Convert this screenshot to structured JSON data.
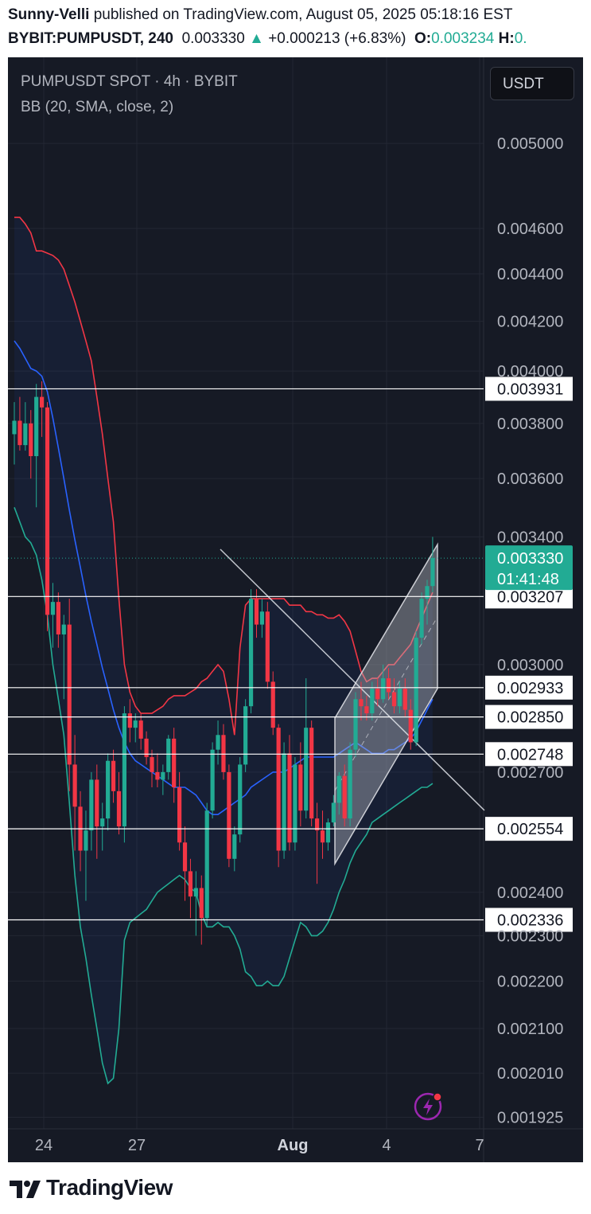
{
  "header": {
    "line1_author": "Sunny-Velli",
    "line1_rest": "published on TradingView.com, August 05, 2025 05:18:16 EST",
    "symbol": "BYBIT:PUMPUSDT, 240",
    "price": "0.003330",
    "change": "+0.000213 (+6.83%)",
    "o_label": "O:",
    "o_value": "0.003234",
    "h_label": "H:",
    "h_value": "0."
  },
  "overlay": {
    "title": "PUMPUSDT SPOT · 4h · BYBIT",
    "indicator": "BB (20, SMA, close, 2)",
    "currency_button": "USDT"
  },
  "colors": {
    "bg": "#161a25",
    "up": "#22ab94",
    "down": "#f23645",
    "bb_upper": "#f23645",
    "bb_basis": "#2962ff",
    "bb_lower": "#22ab94",
    "level_line": "#ffffff"
  },
  "footer": {
    "brand": "TradingView",
    "logo_icon": "tradingview-logo-icon"
  },
  "action_icon": "lightning-alert-icon",
  "chart_data": {
    "type": "candlestick",
    "price_axis_ticks": [
      "0.005000",
      "0.004600",
      "0.004400",
      "0.004200",
      "0.004000",
      "0.003800",
      "0.003600",
      "0.003400",
      "0.003000",
      "0.002700",
      "0.002400",
      "0.002300",
      "0.002200",
      "0.002100",
      "0.002010",
      "0.001925"
    ],
    "price_labels": [
      "0.003931",
      "0.003207",
      "0.002933",
      "0.002850",
      "0.002748",
      "0.002554",
      "0.002336"
    ],
    "horizontal_levels": [
      0.003931,
      0.003207,
      0.002933,
      0.00285,
      0.002748,
      0.002554,
      0.002336
    ],
    "current_price": "0.003330",
    "countdown": "01:41:48",
    "x_ticks": [
      "24",
      "27",
      "Aug",
      "4",
      "7"
    ],
    "ylim": [
      0.00188,
      0.0053
    ],
    "scale": "log",
    "candles": [
      [
        0.00376,
        0.00388,
        0.00365,
        0.00381
      ],
      [
        0.00381,
        0.0039,
        0.0037,
        0.00372
      ],
      [
        0.00372,
        0.00388,
        0.0037,
        0.0038
      ],
      [
        0.0038,
        0.00385,
        0.0036,
        0.00368
      ],
      [
        0.00368,
        0.00395,
        0.0035,
        0.0039
      ],
      [
        0.0039,
        0.00396,
        0.00375,
        0.00386
      ],
      [
        0.00386,
        0.00388,
        0.0031,
        0.00315
      ],
      [
        0.00315,
        0.00325,
        0.00305,
        0.00319
      ],
      [
        0.00319,
        0.00322,
        0.00305,
        0.00309
      ],
      [
        0.00309,
        0.00315,
        0.0029,
        0.00312
      ],
      [
        0.00312,
        0.0032,
        0.00265,
        0.00272
      ],
      [
        0.00272,
        0.0028,
        0.0025,
        0.00261
      ],
      [
        0.00261,
        0.00265,
        0.00245,
        0.0025
      ],
      [
        0.0025,
        0.0026,
        0.00238,
        0.00255
      ],
      [
        0.00255,
        0.0027,
        0.0025,
        0.00268
      ],
      [
        0.00268,
        0.00272,
        0.00248,
        0.00256
      ],
      [
        0.00256,
        0.00262,
        0.0025,
        0.00258
      ],
      [
        0.00258,
        0.00275,
        0.00255,
        0.00273
      ],
      [
        0.00273,
        0.00276,
        0.00262,
        0.00265
      ],
      [
        0.00265,
        0.0027,
        0.00254,
        0.00256
      ],
      [
        0.00256,
        0.00288,
        0.00252,
        0.00286
      ],
      [
        0.00286,
        0.0029,
        0.00278,
        0.00282
      ],
      [
        0.00282,
        0.00286,
        0.00278,
        0.00284
      ],
      [
        0.00284,
        0.00286,
        0.00276,
        0.00279
      ],
      [
        0.00279,
        0.00281,
        0.00272,
        0.00274
      ],
      [
        0.00274,
        0.00276,
        0.00266,
        0.0027
      ],
      [
        0.0027,
        0.00275,
        0.00266,
        0.00268
      ],
      [
        0.00268,
        0.00272,
        0.00264,
        0.0027
      ],
      [
        0.0027,
        0.0028,
        0.00268,
        0.00279
      ],
      [
        0.00279,
        0.00282,
        0.00262,
        0.00266
      ],
      [
        0.00266,
        0.0027,
        0.0025,
        0.00252
      ],
      [
        0.00252,
        0.00256,
        0.00238,
        0.00245
      ],
      [
        0.00245,
        0.00248,
        0.00234,
        0.00239
      ],
      [
        0.00239,
        0.00245,
        0.0023,
        0.00241
      ],
      [
        0.00241,
        0.00244,
        0.00228,
        0.00234
      ],
      [
        0.00234,
        0.00262,
        0.00232,
        0.0026
      ],
      [
        0.0026,
        0.00278,
        0.00258,
        0.00276
      ],
      [
        0.00276,
        0.00284,
        0.00272,
        0.0028
      ],
      [
        0.0028,
        0.00283,
        0.00268,
        0.0027
      ],
      [
        0.0027,
        0.00272,
        0.00246,
        0.00248
      ],
      [
        0.00248,
        0.00256,
        0.00245,
        0.00254
      ],
      [
        0.00254,
        0.00274,
        0.00252,
        0.00272
      ],
      [
        0.00272,
        0.0029,
        0.0027,
        0.00288
      ],
      [
        0.00288,
        0.00323,
        0.00286,
        0.0032
      ],
      [
        0.0032,
        0.00323,
        0.00308,
        0.00312
      ],
      [
        0.00312,
        0.0032,
        0.00308,
        0.00316
      ],
      [
        0.00316,
        0.00319,
        0.00293,
        0.00295
      ],
      [
        0.00295,
        0.00298,
        0.0028,
        0.00282
      ],
      [
        0.00282,
        0.00283,
        0.00246,
        0.0025
      ],
      [
        0.0025,
        0.00278,
        0.00248,
        0.00275
      ],
      [
        0.00275,
        0.0028,
        0.0025,
        0.00252
      ],
      [
        0.00252,
        0.00274,
        0.0025,
        0.00272
      ],
      [
        0.00272,
        0.00278,
        0.00256,
        0.0026
      ],
      [
        0.0026,
        0.00296,
        0.00258,
        0.00282
      ],
      [
        0.00282,
        0.00284,
        0.00256,
        0.00258
      ],
      [
        0.00258,
        0.00262,
        0.00242,
        0.00255
      ],
      [
        0.00255,
        0.0026,
        0.00248,
        0.00252
      ],
      [
        0.00252,
        0.00258,
        0.0025,
        0.00257
      ],
      [
        0.00257,
        0.00264,
        0.00256,
        0.00262
      ],
      [
        0.00262,
        0.0027,
        0.00259,
        0.00269
      ],
      [
        0.00269,
        0.00272,
        0.00256,
        0.00258
      ],
      [
        0.00258,
        0.00278,
        0.00256,
        0.00276
      ],
      [
        0.00276,
        0.00292,
        0.00274,
        0.0029
      ],
      [
        0.0029,
        0.00295,
        0.00284,
        0.00288
      ],
      [
        0.00288,
        0.00291,
        0.00284,
        0.00286
      ],
      [
        0.00286,
        0.00295,
        0.00284,
        0.00293
      ],
      [
        0.00293,
        0.00296,
        0.00288,
        0.0029
      ],
      [
        0.0029,
        0.003,
        0.00289,
        0.00296
      ],
      [
        0.00296,
        0.00299,
        0.0029,
        0.00292
      ],
      [
        0.00292,
        0.00296,
        0.00286,
        0.00288
      ],
      [
        0.00288,
        0.00295,
        0.00286,
        0.00293
      ],
      [
        0.00293,
        0.00296,
        0.00285,
        0.00287
      ],
      [
        0.00287,
        0.0029,
        0.00276,
        0.00278
      ],
      [
        0.00278,
        0.0031,
        0.00277,
        0.00308
      ],
      [
        0.00308,
        0.00322,
        0.00306,
        0.0032
      ],
      [
        0.0032,
        0.00326,
        0.00312,
        0.00324
      ],
      [
        0.00324,
        0.0034,
        0.00322,
        0.00333
      ]
    ],
    "bb_upper": [
      0.00465,
      0.00465,
      0.00462,
      0.00458,
      0.0045,
      0.0045,
      0.00449,
      0.00448,
      0.00446,
      0.00442,
      0.00435,
      0.00428,
      0.0042,
      0.00412,
      0.00404,
      0.0039,
      0.00376,
      0.0036,
      0.00345,
      0.0032,
      0.003,
      0.00292,
      0.00288,
      0.00286,
      0.00286,
      0.00286,
      0.00287,
      0.00288,
      0.0029,
      0.00291,
      0.00291,
      0.00291,
      0.00292,
      0.00293,
      0.00295,
      0.00296,
      0.00298,
      0.003,
      0.00298,
      0.0029,
      0.0028,
      0.00305,
      0.00318,
      0.0032,
      0.0032,
      0.0032,
      0.0032,
      0.0032,
      0.0032,
      0.0032,
      0.00318,
      0.00318,
      0.00318,
      0.00316,
      0.00316,
      0.00315,
      0.00315,
      0.00314,
      0.00314,
      0.00315,
      0.00313,
      0.0031,
      0.00304,
      0.00298,
      0.00295,
      0.00296,
      0.00296,
      0.00298,
      0.003,
      0.003,
      0.00302,
      0.00304,
      0.00306,
      0.0031,
      0.00314,
      0.00318,
      0.00322
    ],
    "bb_basis": [
      0.00412,
      0.00409,
      0.00405,
      0.00401,
      0.004,
      0.00398,
      0.00392,
      0.00382,
      0.00371,
      0.0036,
      0.00349,
      0.00339,
      0.0033,
      0.00321,
      0.00313,
      0.00306,
      0.00299,
      0.00293,
      0.00287,
      0.00282,
      0.00278,
      0.00275,
      0.00273,
      0.00272,
      0.00271,
      0.0027,
      0.00269,
      0.00268,
      0.00267,
      0.00266,
      0.00266,
      0.00266,
      0.00265,
      0.00264,
      0.00262,
      0.0026,
      0.00259,
      0.00259,
      0.0026,
      0.00261,
      0.00262,
      0.00263,
      0.00264,
      0.00266,
      0.00267,
      0.00268,
      0.00269,
      0.0027,
      0.0027,
      0.0027,
      0.00271,
      0.00272,
      0.00273,
      0.00274,
      0.00274,
      0.00274,
      0.00274,
      0.00274,
      0.00274,
      0.00275,
      0.00276,
      0.00277,
      0.00278,
      0.00277,
      0.00276,
      0.00275,
      0.00275,
      0.00275,
      0.00276,
      0.00276,
      0.00277,
      0.00278,
      0.00279,
      0.00281,
      0.00284,
      0.00287,
      0.0029
    ],
    "bb_lower": [
      0.0035,
      0.00345,
      0.0034,
      0.00338,
      0.00334,
      0.00326,
      0.00315,
      0.003,
      0.0029,
      0.0028,
      0.00262,
      0.00244,
      0.00232,
      0.00225,
      0.00217,
      0.0021,
      0.00203,
      0.00199,
      0.002,
      0.0021,
      0.00229,
      0.00233,
      0.00234,
      0.00235,
      0.00236,
      0.00238,
      0.0024,
      0.00241,
      0.00242,
      0.00243,
      0.00244,
      0.00243,
      0.00241,
      0.0024,
      0.00235,
      0.00232,
      0.00232,
      0.00233,
      0.00232,
      0.00232,
      0.0023,
      0.00227,
      0.00222,
      0.00221,
      0.00219,
      0.00219,
      0.0022,
      0.00219,
      0.00219,
      0.00221,
      0.00225,
      0.00229,
      0.00233,
      0.00232,
      0.0023,
      0.0023,
      0.00231,
      0.00233,
      0.00236,
      0.0024,
      0.00243,
      0.00247,
      0.0025,
      0.00252,
      0.00254,
      0.00257,
      0.00258,
      0.00259,
      0.0026,
      0.00261,
      0.00262,
      0.00263,
      0.00264,
      0.00265,
      0.00266,
      0.00266,
      0.00267
    ]
  }
}
